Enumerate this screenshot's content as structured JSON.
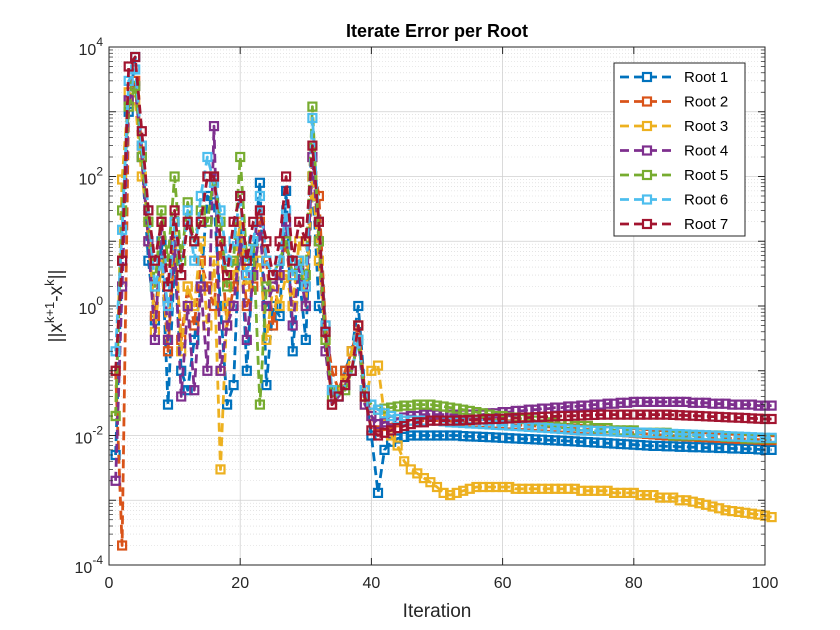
{
  "chart_data": {
    "type": "line",
    "title": "Iterate Error per Root",
    "xlabel": "Iteration",
    "ylabel_base": "||x",
    "ylabel_sup1": "k+1",
    "ylabel_mid": "-x",
    "ylabel_sup2": "k",
    "ylabel_end": "||",
    "xlim": [
      0,
      100
    ],
    "ylim_log10": [
      -4,
      4
    ],
    "xticks": [
      0,
      20,
      40,
      60,
      80,
      100
    ],
    "yticks": [
      {
        "base": "10",
        "exp": "-4"
      },
      {
        "base": "10",
        "exp": "-2"
      },
      {
        "base": "10",
        "exp": "0"
      },
      {
        "base": "10",
        "exp": "2"
      },
      {
        "base": "10",
        "exp": "4"
      }
    ],
    "grid": true,
    "marker": "square",
    "linestyle": "dashed",
    "legend_position": "top-right",
    "series": [
      {
        "name": "Root 1",
        "color": "#0072BD",
        "values": [
          0.005,
          5,
          1000,
          7000,
          200,
          5,
          0.6,
          10,
          0.03,
          5,
          0.1,
          0.05,
          0.3,
          2,
          50,
          40,
          1,
          0.03,
          0.06,
          20,
          0.1,
          5,
          80,
          0.06,
          1,
          0.7,
          60,
          0.2,
          3,
          0.3,
          100,
          1,
          0.4,
          0.05,
          0.04,
          0.1,
          0.2,
          1,
          0.05,
          0.01,
          0.0013,
          0.006,
          0.008,
          0.009,
          0.0095,
          0.01,
          0.01,
          0.01,
          0.01,
          0.01,
          0.01,
          0.01,
          0.01,
          0.0098,
          0.0097,
          0.0096,
          0.0095,
          0.0094,
          0.0093,
          0.0092,
          0.0091,
          0.009,
          0.0089,
          0.0088,
          0.0087,
          0.0086,
          0.0085,
          0.0084,
          0.0083,
          0.0082,
          0.0081,
          0.008,
          0.0079,
          0.0078,
          0.0077,
          0.0076,
          0.0075,
          0.0074,
          0.0073,
          0.0072,
          0.0071,
          0.007,
          0.0069,
          0.0069,
          0.0068,
          0.0068,
          0.0067,
          0.0067,
          0.0066,
          0.0066,
          0.0065,
          0.0065,
          0.0064,
          0.0064,
          0.0063,
          0.0063,
          0.0062,
          0.0062,
          0.0061,
          0.006,
          0.006
        ]
      },
      {
        "name": "Root 2",
        "color": "#D95319",
        "values": [
          0.1,
          0.0002,
          1500,
          3000,
          300,
          10,
          0.7,
          5,
          0.2,
          10,
          0.3,
          2,
          0.5,
          5,
          2,
          1,
          10,
          0.5,
          2,
          10,
          1,
          2,
          20,
          5,
          0.5,
          3,
          10,
          1,
          5,
          2,
          200,
          50,
          0.5,
          0.1,
          0.05,
          0.1,
          0.2,
          0.5,
          0.05,
          0.02,
          0.012,
          0.014,
          0.015,
          0.016,
          0.017,
          0.017,
          0.017,
          0.017,
          0.017,
          0.017,
          0.0168,
          0.0166,
          0.0164,
          0.0162,
          0.016,
          0.0158,
          0.0156,
          0.0154,
          0.0152,
          0.015,
          0.0148,
          0.0146,
          0.0144,
          0.0142,
          0.014,
          0.0138,
          0.0136,
          0.0134,
          0.0132,
          0.013,
          0.0128,
          0.0126,
          0.0124,
          0.0122,
          0.012,
          0.0118,
          0.0116,
          0.0114,
          0.0112,
          0.011,
          0.0108,
          0.0106,
          0.0104,
          0.0102,
          0.01,
          0.0099,
          0.0098,
          0.0097,
          0.0096,
          0.0095,
          0.0094,
          0.0093,
          0.0092,
          0.0091,
          0.009,
          0.0089,
          0.0088,
          0.0087,
          0.0086,
          0.0085,
          0.0085
        ]
      },
      {
        "name": "Root 3",
        "color": "#EDB120",
        "values": [
          0.02,
          90,
          2000,
          1500,
          100,
          20,
          0.4,
          5,
          0.3,
          20,
          0.2,
          2,
          1,
          10,
          0.5,
          5,
          0.003,
          1,
          3,
          20,
          2,
          3,
          5,
          0.3,
          2,
          1,
          3,
          1,
          10,
          1,
          100,
          5,
          0.3,
          0.03,
          0.05,
          0.07,
          0.2,
          0.5,
          0.03,
          0.1,
          0.12,
          0.02,
          0.01,
          0.007,
          0.004,
          0.003,
          0.0026,
          0.0022,
          0.0019,
          0.0016,
          0.0013,
          0.0012,
          0.0013,
          0.0014,
          0.0015,
          0.0016,
          0.0016,
          0.0016,
          0.0016,
          0.0016,
          0.0016,
          0.0015,
          0.0015,
          0.0015,
          0.0015,
          0.0015,
          0.0015,
          0.0015,
          0.0015,
          0.0015,
          0.0015,
          0.0014,
          0.0014,
          0.0014,
          0.0014,
          0.0014,
          0.0013,
          0.0013,
          0.0013,
          0.0013,
          0.0012,
          0.0012,
          0.0012,
          0.0011,
          0.0011,
          0.0011,
          0.001,
          0.001,
          0.00095,
          0.0009,
          0.00085,
          0.0008,
          0.00075,
          0.0007,
          0.00068,
          0.00066,
          0.00064,
          0.00062,
          0.0006,
          0.00058,
          0.00055
        ]
      },
      {
        "name": "Root 4",
        "color": "#7E2F8E",
        "values": [
          0.002,
          2,
          1500,
          2500,
          200,
          10,
          0.3,
          20,
          0.3,
          10,
          0.04,
          1,
          0.05,
          2,
          0.1,
          600,
          0.1,
          0.5,
          1,
          10,
          0.3,
          3,
          15,
          1,
          2,
          3,
          20,
          0.5,
          4,
          1,
          200,
          10,
          0.2,
          0.03,
          0.04,
          0.06,
          0.1,
          0.3,
          0.03,
          0.02,
          0.015,
          0.016,
          0.017,
          0.018,
          0.019,
          0.02,
          0.02,
          0.021,
          0.021,
          0.021,
          0.021,
          0.021,
          0.021,
          0.021,
          0.021,
          0.021,
          0.021,
          0.022,
          0.022,
          0.023,
          0.023,
          0.024,
          0.024,
          0.025,
          0.025,
          0.026,
          0.026,
          0.027,
          0.027,
          0.028,
          0.028,
          0.029,
          0.029,
          0.03,
          0.03,
          0.031,
          0.031,
          0.032,
          0.032,
          0.033,
          0.033,
          0.033,
          0.033,
          0.033,
          0.033,
          0.033,
          0.033,
          0.033,
          0.032,
          0.032,
          0.032,
          0.031,
          0.031,
          0.031,
          0.03,
          0.03,
          0.03,
          0.03,
          0.029,
          0.029,
          0.029
        ]
      },
      {
        "name": "Root 5",
        "color": "#77AC30",
        "values": [
          0.02,
          30,
          1200,
          2500,
          200,
          20,
          2,
          30,
          5,
          100,
          5,
          40,
          10,
          30,
          20,
          100,
          20,
          2,
          5,
          200,
          5,
          10,
          0.03,
          2,
          3,
          5,
          10,
          3,
          5,
          3,
          1200,
          10,
          0.3,
          0.04,
          0.05,
          0.05,
          0.1,
          0.3,
          0.04,
          0.03,
          0.025,
          0.026,
          0.027,
          0.028,
          0.029,
          0.029,
          0.03,
          0.03,
          0.03,
          0.029,
          0.028,
          0.027,
          0.026,
          0.025,
          0.024,
          0.023,
          0.022,
          0.021,
          0.02,
          0.02,
          0.019,
          0.019,
          0.018,
          0.018,
          0.017,
          0.017,
          0.016,
          0.016,
          0.015,
          0.015,
          0.014,
          0.014,
          0.014,
          0.013,
          0.013,
          0.013,
          0.012,
          0.012,
          0.012,
          0.012,
          0.011,
          0.011,
          0.011,
          0.011,
          0.011,
          0.01,
          0.01,
          0.01,
          0.01,
          0.01,
          0.01,
          0.01,
          0.01,
          0.0095,
          0.0095,
          0.0095,
          0.009,
          0.009,
          0.009,
          0.009,
          0.009
        ]
      },
      {
        "name": "Root 6",
        "color": "#4DBEEE",
        "values": [
          0.2,
          15,
          3000,
          4500,
          300,
          30,
          2,
          5,
          1,
          20,
          3,
          30,
          5,
          50,
          200,
          80,
          30,
          5,
          10,
          50,
          3,
          10,
          50,
          5,
          3,
          5,
          30,
          3,
          5,
          2,
          800,
          20,
          0.5,
          0.05,
          0.04,
          0.06,
          0.1,
          0.3,
          0.05,
          0.03,
          0.025,
          0.022,
          0.02,
          0.018,
          0.017,
          0.017,
          0.017,
          0.017,
          0.017,
          0.017,
          0.0165,
          0.016,
          0.0158,
          0.0156,
          0.0154,
          0.0152,
          0.015,
          0.0148,
          0.0146,
          0.0144,
          0.0142,
          0.014,
          0.0138,
          0.0136,
          0.0134,
          0.0132,
          0.013,
          0.0128,
          0.0126,
          0.0124,
          0.0122,
          0.012,
          0.0119,
          0.0118,
          0.0117,
          0.0116,
          0.0115,
          0.0114,
          0.0113,
          0.0112,
          0.0111,
          0.011,
          0.0109,
          0.0108,
          0.0107,
          0.0106,
          0.0105,
          0.0104,
          0.0103,
          0.0102,
          0.0101,
          0.01,
          0.0099,
          0.0098,
          0.0097,
          0.0096,
          0.0095,
          0.0094,
          0.0093,
          0.0092,
          0.0092
        ]
      },
      {
        "name": "Root 7",
        "color": "#A2142F",
        "values": [
          0.1,
          5,
          5000,
          7000,
          500,
          30,
          5,
          20,
          2,
          30,
          3,
          20,
          10,
          20,
          100,
          100,
          10,
          3,
          20,
          50,
          5,
          20,
          30,
          10,
          3,
          10,
          100,
          5,
          20,
          10,
          300,
          20,
          0.4,
          0.03,
          0.04,
          0.06,
          0.1,
          0.5,
          0.04,
          0.012,
          0.01,
          0.011,
          0.012,
          0.013,
          0.014,
          0.015,
          0.016,
          0.016,
          0.017,
          0.017,
          0.017,
          0.017,
          0.017,
          0.0172,
          0.0174,
          0.0176,
          0.0178,
          0.018,
          0.018,
          0.0182,
          0.0184,
          0.0186,
          0.0188,
          0.019,
          0.0192,
          0.0194,
          0.0196,
          0.0198,
          0.02,
          0.02,
          0.0202,
          0.0204,
          0.0206,
          0.0208,
          0.021,
          0.021,
          0.021,
          0.021,
          0.021,
          0.021,
          0.021,
          0.021,
          0.021,
          0.021,
          0.021,
          0.0208,
          0.0206,
          0.0204,
          0.0202,
          0.02,
          0.0198,
          0.0196,
          0.0194,
          0.0192,
          0.019,
          0.0188,
          0.0186,
          0.0184,
          0.0182,
          0.018,
          0.018
        ]
      }
    ]
  }
}
